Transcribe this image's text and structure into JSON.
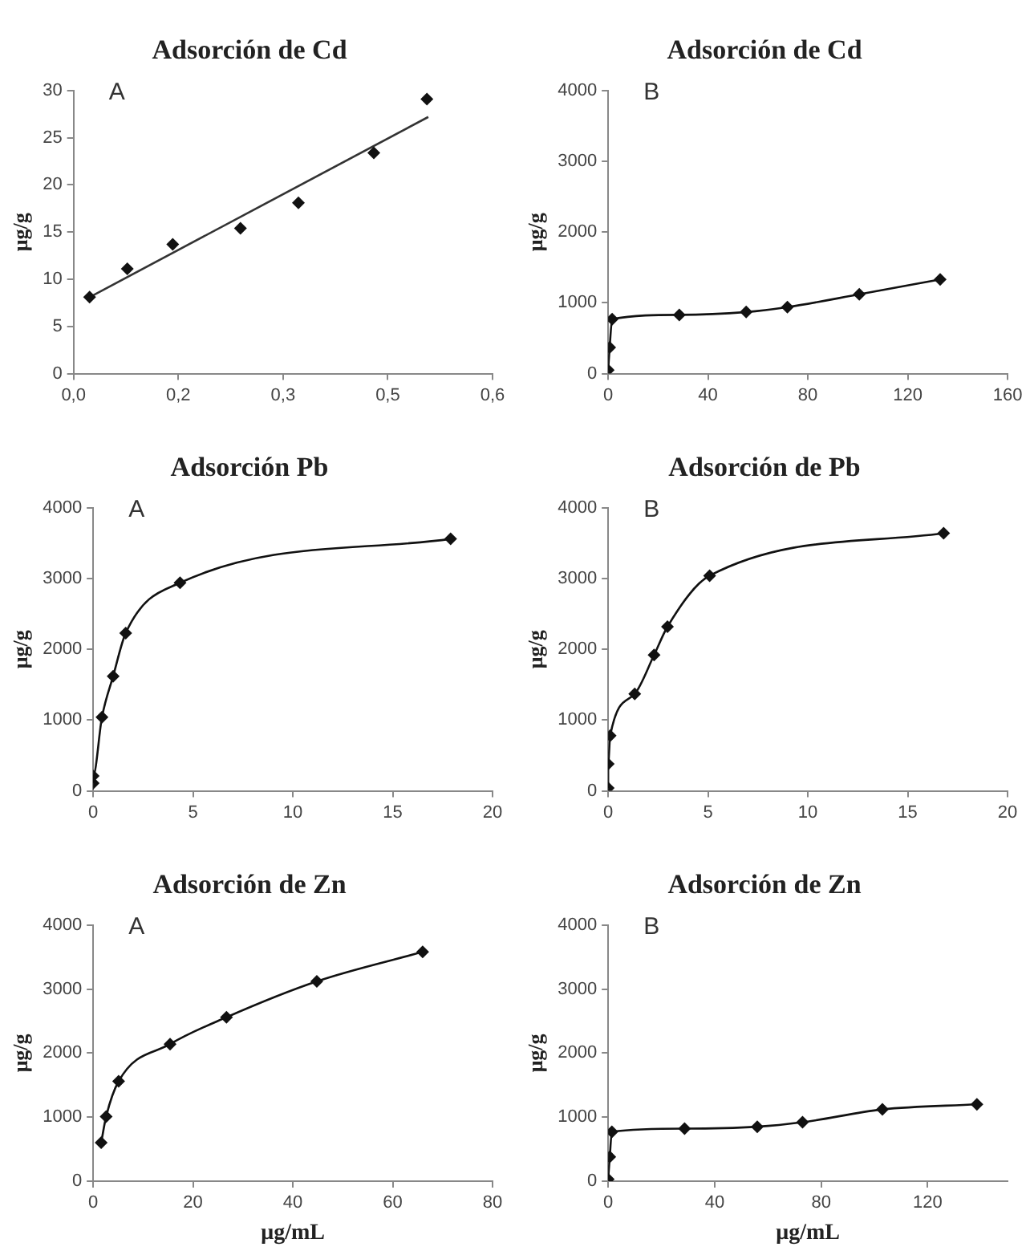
{
  "chart_data": [
    {
      "type": "scatter",
      "title": "Adsorción de Cd",
      "ylabel": "μg/g",
      "annotations": [
        "A"
      ],
      "xlim": [
        0,
        0.6
      ],
      "xticks": [
        {
          "value": 0,
          "label": "0,0"
        },
        {
          "value": 0.15,
          "label": "0,2"
        },
        {
          "value": 0.3,
          "label": "0,3"
        },
        {
          "value": 0.45,
          "label": "0,5"
        },
        {
          "value": 0.6,
          "label": "0,6"
        }
      ],
      "ylim": [
        0,
        30
      ],
      "yticks": [
        0,
        5,
        10,
        15,
        20,
        25,
        30
      ],
      "grid": false,
      "legend": false,
      "marker": "diamond",
      "series": [
        {
          "type": "scatter",
          "color": "#111111",
          "x": [
            0.023,
            0.077,
            0.142,
            0.239,
            0.322,
            0.43,
            0.506
          ],
          "values": [
            8.1,
            11.1,
            13.7,
            15.4,
            18.1,
            23.4,
            29.1
          ]
        },
        {
          "type": "line",
          "color": "#333333",
          "marker": "none",
          "x": [
            0.023,
            0.508
          ],
          "values": [
            8.1,
            27.2
          ]
        }
      ]
    },
    {
      "type": "line",
      "title": "Adsorción de Cd",
      "ylabel": "μg/g",
      "annotations": [
        "B"
      ],
      "xlim": [
        0,
        160
      ],
      "xticks": [
        0,
        40,
        80,
        120,
        160
      ],
      "ylim": [
        0,
        4000
      ],
      "yticks": [
        0,
        1000,
        2000,
        3000,
        4000
      ],
      "grid": false,
      "legend": false,
      "marker": "diamond",
      "series": [
        {
          "color": "#111111",
          "x": [
            0,
            0.6,
            1.6,
            28.5,
            55.3,
            71.8,
            100.6,
            133
          ],
          "values": [
            50,
            370,
            770,
            830,
            870,
            940,
            1120,
            1330
          ]
        }
      ]
    },
    {
      "type": "line",
      "title": "Adsorción Pb",
      "ylabel": "μg/g",
      "annotations": [
        "A"
      ],
      "xlim": [
        0,
        20
      ],
      "xticks": [
        0,
        5,
        10,
        15,
        20
      ],
      "ylim": [
        0,
        4000
      ],
      "yticks": [
        0,
        1000,
        2000,
        3000,
        4000
      ],
      "grid": false,
      "legend": false,
      "marker": "diamond",
      "series": [
        {
          "color": "#111111",
          "x": [
            0,
            0,
            0.44,
            1.0,
            1.63,
            4.35,
            17.9
          ],
          "values": [
            110,
            210,
            1040,
            1620,
            2230,
            2940,
            3560
          ]
        }
      ]
    },
    {
      "type": "line",
      "title": "Adsorción de Pb",
      "ylabel": "μg/g",
      "annotations": [
        "B"
      ],
      "xlim": [
        0,
        20
      ],
      "xticks": [
        0,
        5,
        10,
        15,
        20
      ],
      "ylim": [
        0,
        4000
      ],
      "yticks": [
        0,
        1000,
        2000,
        3000,
        4000
      ],
      "grid": false,
      "legend": false,
      "marker": "diamond",
      "series": [
        {
          "color": "#111111",
          "x": [
            0,
            0,
            0.1,
            1.33,
            2.3,
            2.97,
            5.08,
            16.8
          ],
          "values": [
            40,
            380,
            780,
            1370,
            1920,
            2320,
            3040,
            3640
          ]
        }
      ]
    },
    {
      "type": "line",
      "title": "Adsorción de Zn",
      "ylabel": "μg/g",
      "xlabel": "μg/mL",
      "annotations": [
        "A"
      ],
      "xlim": [
        0,
        80
      ],
      "xticks": [
        0,
        20,
        40,
        60,
        80
      ],
      "ylim": [
        0,
        4000
      ],
      "yticks": [
        0,
        1000,
        2000,
        3000,
        4000
      ],
      "grid": false,
      "legend": false,
      "marker": "diamond",
      "series": [
        {
          "color": "#111111",
          "x": [
            1.6,
            2.6,
            5.1,
            15.4,
            26.7,
            44.8,
            66
          ],
          "values": [
            600,
            1010,
            1560,
            2140,
            2560,
            3120,
            3580
          ]
        }
      ]
    },
    {
      "type": "line",
      "title": "Adsorción de Zn",
      "ylabel": "μg/g",
      "xlabel": "μg/mL",
      "annotations": [
        "B"
      ],
      "xlim": [
        0,
        150
      ],
      "xticks": [
        0,
        40,
        80,
        120
      ],
      "ylim": [
        0,
        4000
      ],
      "yticks": [
        0,
        1000,
        2000,
        3000,
        4000
      ],
      "grid": false,
      "legend": false,
      "marker": "diamond",
      "series": [
        {
          "color": "#111111",
          "x": [
            0,
            0.6,
            1.4,
            28.7,
            56,
            73,
            103,
            138.5
          ],
          "values": [
            30,
            380,
            770,
            820,
            850,
            920,
            1120,
            1200
          ]
        }
      ]
    }
  ]
}
